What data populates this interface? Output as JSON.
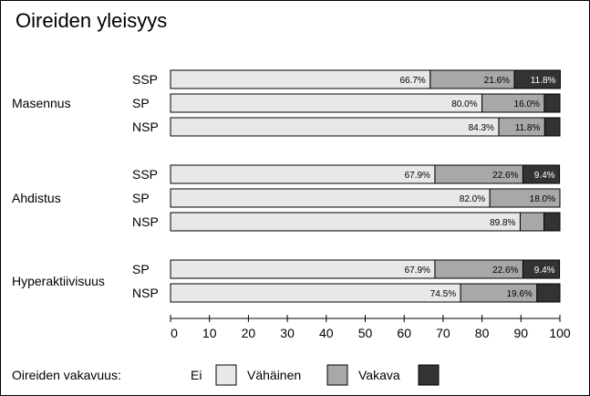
{
  "chart_data": {
    "type": "bar",
    "orientation": "horizontal",
    "stacked": true,
    "title": "Oireiden yleisyys",
    "xlim": [
      0,
      100
    ],
    "xticks": [
      0,
      10,
      20,
      30,
      40,
      50,
      60,
      70,
      80,
      90,
      100
    ],
    "grid": false,
    "categories_legend_title": "Oireiden vakavuus:",
    "series": [
      {
        "name": "Ei",
        "color": "#e8e8e8"
      },
      {
        "name": "Vähäinen",
        "color": "#a8a8a8"
      },
      {
        "name": "Vakava",
        "color": "#333333"
      }
    ],
    "groups": [
      {
        "name": "Masennus",
        "bars": [
          {
            "label": "SSP",
            "values": [
              66.7,
              21.6,
              11.8
            ],
            "value_labels": [
              "66.7%",
              "21.6%",
              "11.8%"
            ]
          },
          {
            "label": "SP",
            "values": [
              80.0,
              16.0,
              4.0
            ],
            "value_labels": [
              "80.0%",
              "16.0%",
              ""
            ]
          },
          {
            "label": "NSP",
            "values": [
              84.3,
              11.8,
              3.9
            ],
            "value_labels": [
              "84.3%",
              "11.8%",
              ""
            ]
          }
        ]
      },
      {
        "name": "Ahdistus",
        "bars": [
          {
            "label": "SSP",
            "values": [
              67.9,
              22.6,
              9.4
            ],
            "value_labels": [
              "67.9%",
              "22.6%",
              "9.4%"
            ]
          },
          {
            "label": "SP",
            "values": [
              82.0,
              18.0,
              0.0
            ],
            "value_labels": [
              "82.0%",
              "18.0%",
              ""
            ]
          },
          {
            "label": "NSP",
            "values": [
              89.8,
              6.1,
              4.1
            ],
            "value_labels": [
              "89.8%",
              "",
              ""
            ]
          }
        ]
      },
      {
        "name": "Hyperaktiivisuus",
        "bars": [
          {
            "label": "SP",
            "values": [
              67.9,
              22.6,
              9.4
            ],
            "value_labels": [
              "67.9%",
              "22.6%",
              "9.4%"
            ]
          },
          {
            "label": "NSP",
            "values": [
              74.5,
              19.6,
              5.9
            ],
            "value_labels": [
              "74.5%",
              "19.6%",
              ""
            ]
          }
        ]
      }
    ]
  }
}
